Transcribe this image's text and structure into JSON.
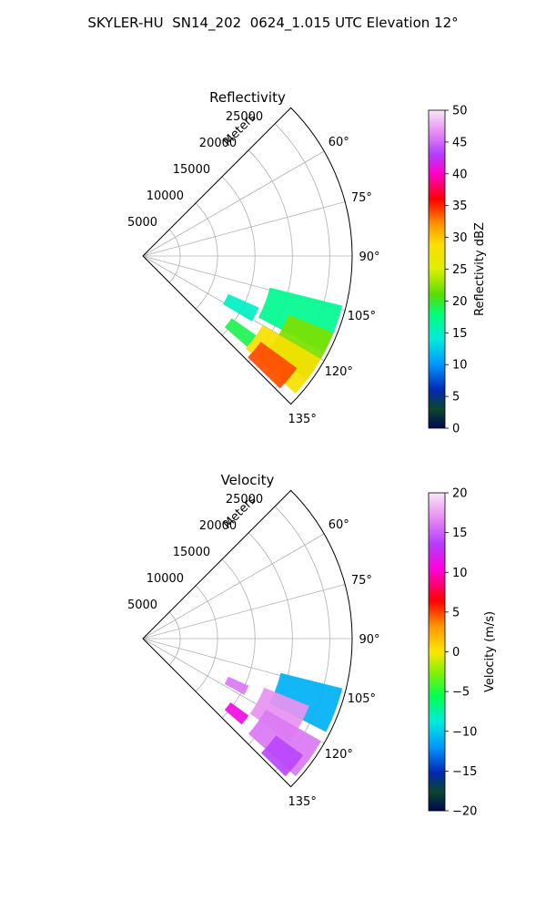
{
  "figure_title": "SKYLER-HU  SN14_202  0624_1.015 UTC Elevation 12°",
  "colors": {
    "grid": "#b0b0b0",
    "axis": "#000000"
  },
  "chart_data": [
    {
      "type": "heatmap",
      "projection": "polar-sector",
      "title": "Reflectivity",
      "range_axis_label": "Meters",
      "range_ticks": [
        5000,
        10000,
        15000,
        20000,
        25000
      ],
      "range_tick_labels": [
        "5000",
        "10000",
        "15000",
        "20000",
        "25000"
      ],
      "range_max": 28000,
      "azimuth_range": [
        45,
        135
      ],
      "azimuth_ticks": [
        60,
        75,
        90,
        105,
        120,
        135
      ],
      "azimuth_tick_labels": [
        "60°",
        "75°",
        "90°",
        "105°",
        "120°",
        "135°"
      ],
      "grid": true,
      "colorbar": {
        "label": "Reflectivity dBZ",
        "range": [
          0,
          50
        ],
        "ticks": [
          0,
          5,
          10,
          15,
          20,
          25,
          30,
          35,
          40,
          45,
          50
        ],
        "tick_labels": [
          "0",
          "5",
          "10",
          "15",
          "20",
          "25",
          "30",
          "35",
          "40",
          "45",
          "50"
        ]
      },
      "echo_regions": [
        {
          "az": [
            104,
            118
          ],
          "r": [
            17500,
            27500
          ],
          "value": 17
        },
        {
          "az": [
            112,
            127
          ],
          "r": [
            21000,
            27500
          ],
          "value": 22
        },
        {
          "az": [
            120,
            132
          ],
          "r": [
            18500,
            27500
          ],
          "value": 28
        },
        {
          "az": [
            126,
            134
          ],
          "r": [
            19500,
            25500
          ],
          "value": 34
        },
        {
          "az": [
            114,
            121
          ],
          "r": [
            12500,
            17000
          ],
          "value": 15
        },
        {
          "az": [
            125,
            131
          ],
          "r": [
            14500,
            18500
          ],
          "value": 19
        }
      ]
    },
    {
      "type": "heatmap",
      "projection": "polar-sector",
      "title": "Velocity",
      "range_axis_label": "Meters",
      "range_ticks": [
        5000,
        10000,
        15000,
        20000,
        25000
      ],
      "range_tick_labels": [
        "5000",
        "10000",
        "15000",
        "20000",
        "25000"
      ],
      "range_max": 28000,
      "azimuth_range": [
        45,
        135
      ],
      "azimuth_ticks": [
        60,
        75,
        90,
        105,
        120,
        135
      ],
      "azimuth_tick_labels": [
        "60°",
        "75°",
        "90°",
        "105°",
        "120°",
        "135°"
      ],
      "grid": true,
      "colorbar": {
        "label": "Velocity (m/s)",
        "range": [
          -20,
          20
        ],
        "ticks": [
          -20,
          -15,
          -10,
          -5,
          0,
          5,
          10,
          15,
          20
        ],
        "tick_labels": [
          "−20",
          "−15",
          "−10",
          "−5",
          "0",
          "5",
          "10",
          "15",
          "20"
        ]
      },
      "echo_regions": [
        {
          "az": [
            104,
            117
          ],
          "r": [
            19000,
            27500
          ],
          "value": -11
        },
        {
          "az": [
            112,
            125
          ],
          "r": [
            17500,
            24000
          ],
          "value": 17
        },
        {
          "az": [
            120,
            132
          ],
          "r": [
            19000,
            27500
          ],
          "value": 16
        },
        {
          "az": [
            126,
            134
          ],
          "r": [
            22000,
            26500
          ],
          "value": 14
        },
        {
          "az": [
            114,
            119
          ],
          "r": [
            12500,
            15500
          ],
          "value": 16
        },
        {
          "az": [
            126,
            131
          ],
          "r": [
            14500,
            17500
          ],
          "value": 11
        }
      ]
    }
  ]
}
